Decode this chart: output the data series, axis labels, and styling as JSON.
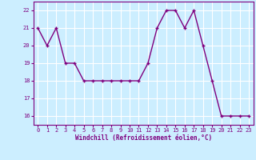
{
  "x": [
    0,
    1,
    2,
    3,
    4,
    5,
    6,
    7,
    8,
    9,
    10,
    11,
    12,
    13,
    14,
    15,
    16,
    17,
    18,
    19,
    20,
    21,
    22,
    23
  ],
  "y": [
    21,
    20,
    21,
    19,
    19,
    18,
    18,
    18,
    18,
    18,
    18,
    18,
    19,
    21,
    22,
    22,
    21,
    22,
    20,
    18,
    16,
    16,
    16,
    16
  ],
  "line_color": "#7f007f",
  "marker": "+",
  "marker_size": 3.5,
  "marker_lw": 1.0,
  "bg_color": "#cceeff",
  "grid_color": "#ffffff",
  "xlabel": "Windchill (Refroidissement éolien,°C)",
  "xlabel_color": "#7f007f",
  "tick_color": "#7f007f",
  "ylim": [
    15.5,
    22.5
  ],
  "xlim": [
    -0.5,
    23.5
  ],
  "yticks": [
    16,
    17,
    18,
    19,
    20,
    21,
    22
  ],
  "xticks": [
    0,
    1,
    2,
    3,
    4,
    5,
    6,
    7,
    8,
    9,
    10,
    11,
    12,
    13,
    14,
    15,
    16,
    17,
    18,
    19,
    20,
    21,
    22,
    23
  ],
  "tick_fontsize": 5.0,
  "xlabel_fontsize": 5.5,
  "linewidth": 1.0
}
